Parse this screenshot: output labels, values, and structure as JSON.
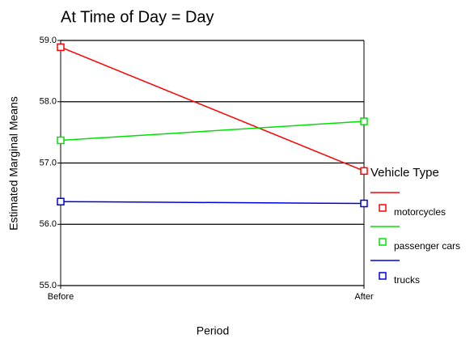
{
  "chart_data": {
    "type": "line",
    "title": "At Time of Day = Day",
    "xlabel": "Period",
    "ylabel": "Estimated Marginal Means",
    "categories": [
      "Before",
      "After"
    ],
    "series": [
      {
        "name": "motorcycles",
        "color": "#ff0000",
        "values": [
          58.89,
          56.87
        ]
      },
      {
        "name": "passenger cars",
        "color": "#00e000",
        "values": [
          57.37,
          57.68
        ]
      },
      {
        "name": "trucks",
        "color": "#0000e0",
        "values": [
          56.37,
          56.34
        ]
      }
    ],
    "legend_title": "Vehicle Type",
    "ylim": [
      55,
      59
    ],
    "yticks": [
      {
        "value": 55,
        "label": "55.0"
      },
      {
        "value": 56,
        "label": "56.0"
      },
      {
        "value": 57,
        "label": "57.0"
      },
      {
        "value": 58,
        "label": "58.0"
      },
      {
        "value": 59,
        "label": "59.0"
      }
    ],
    "grid": true
  }
}
